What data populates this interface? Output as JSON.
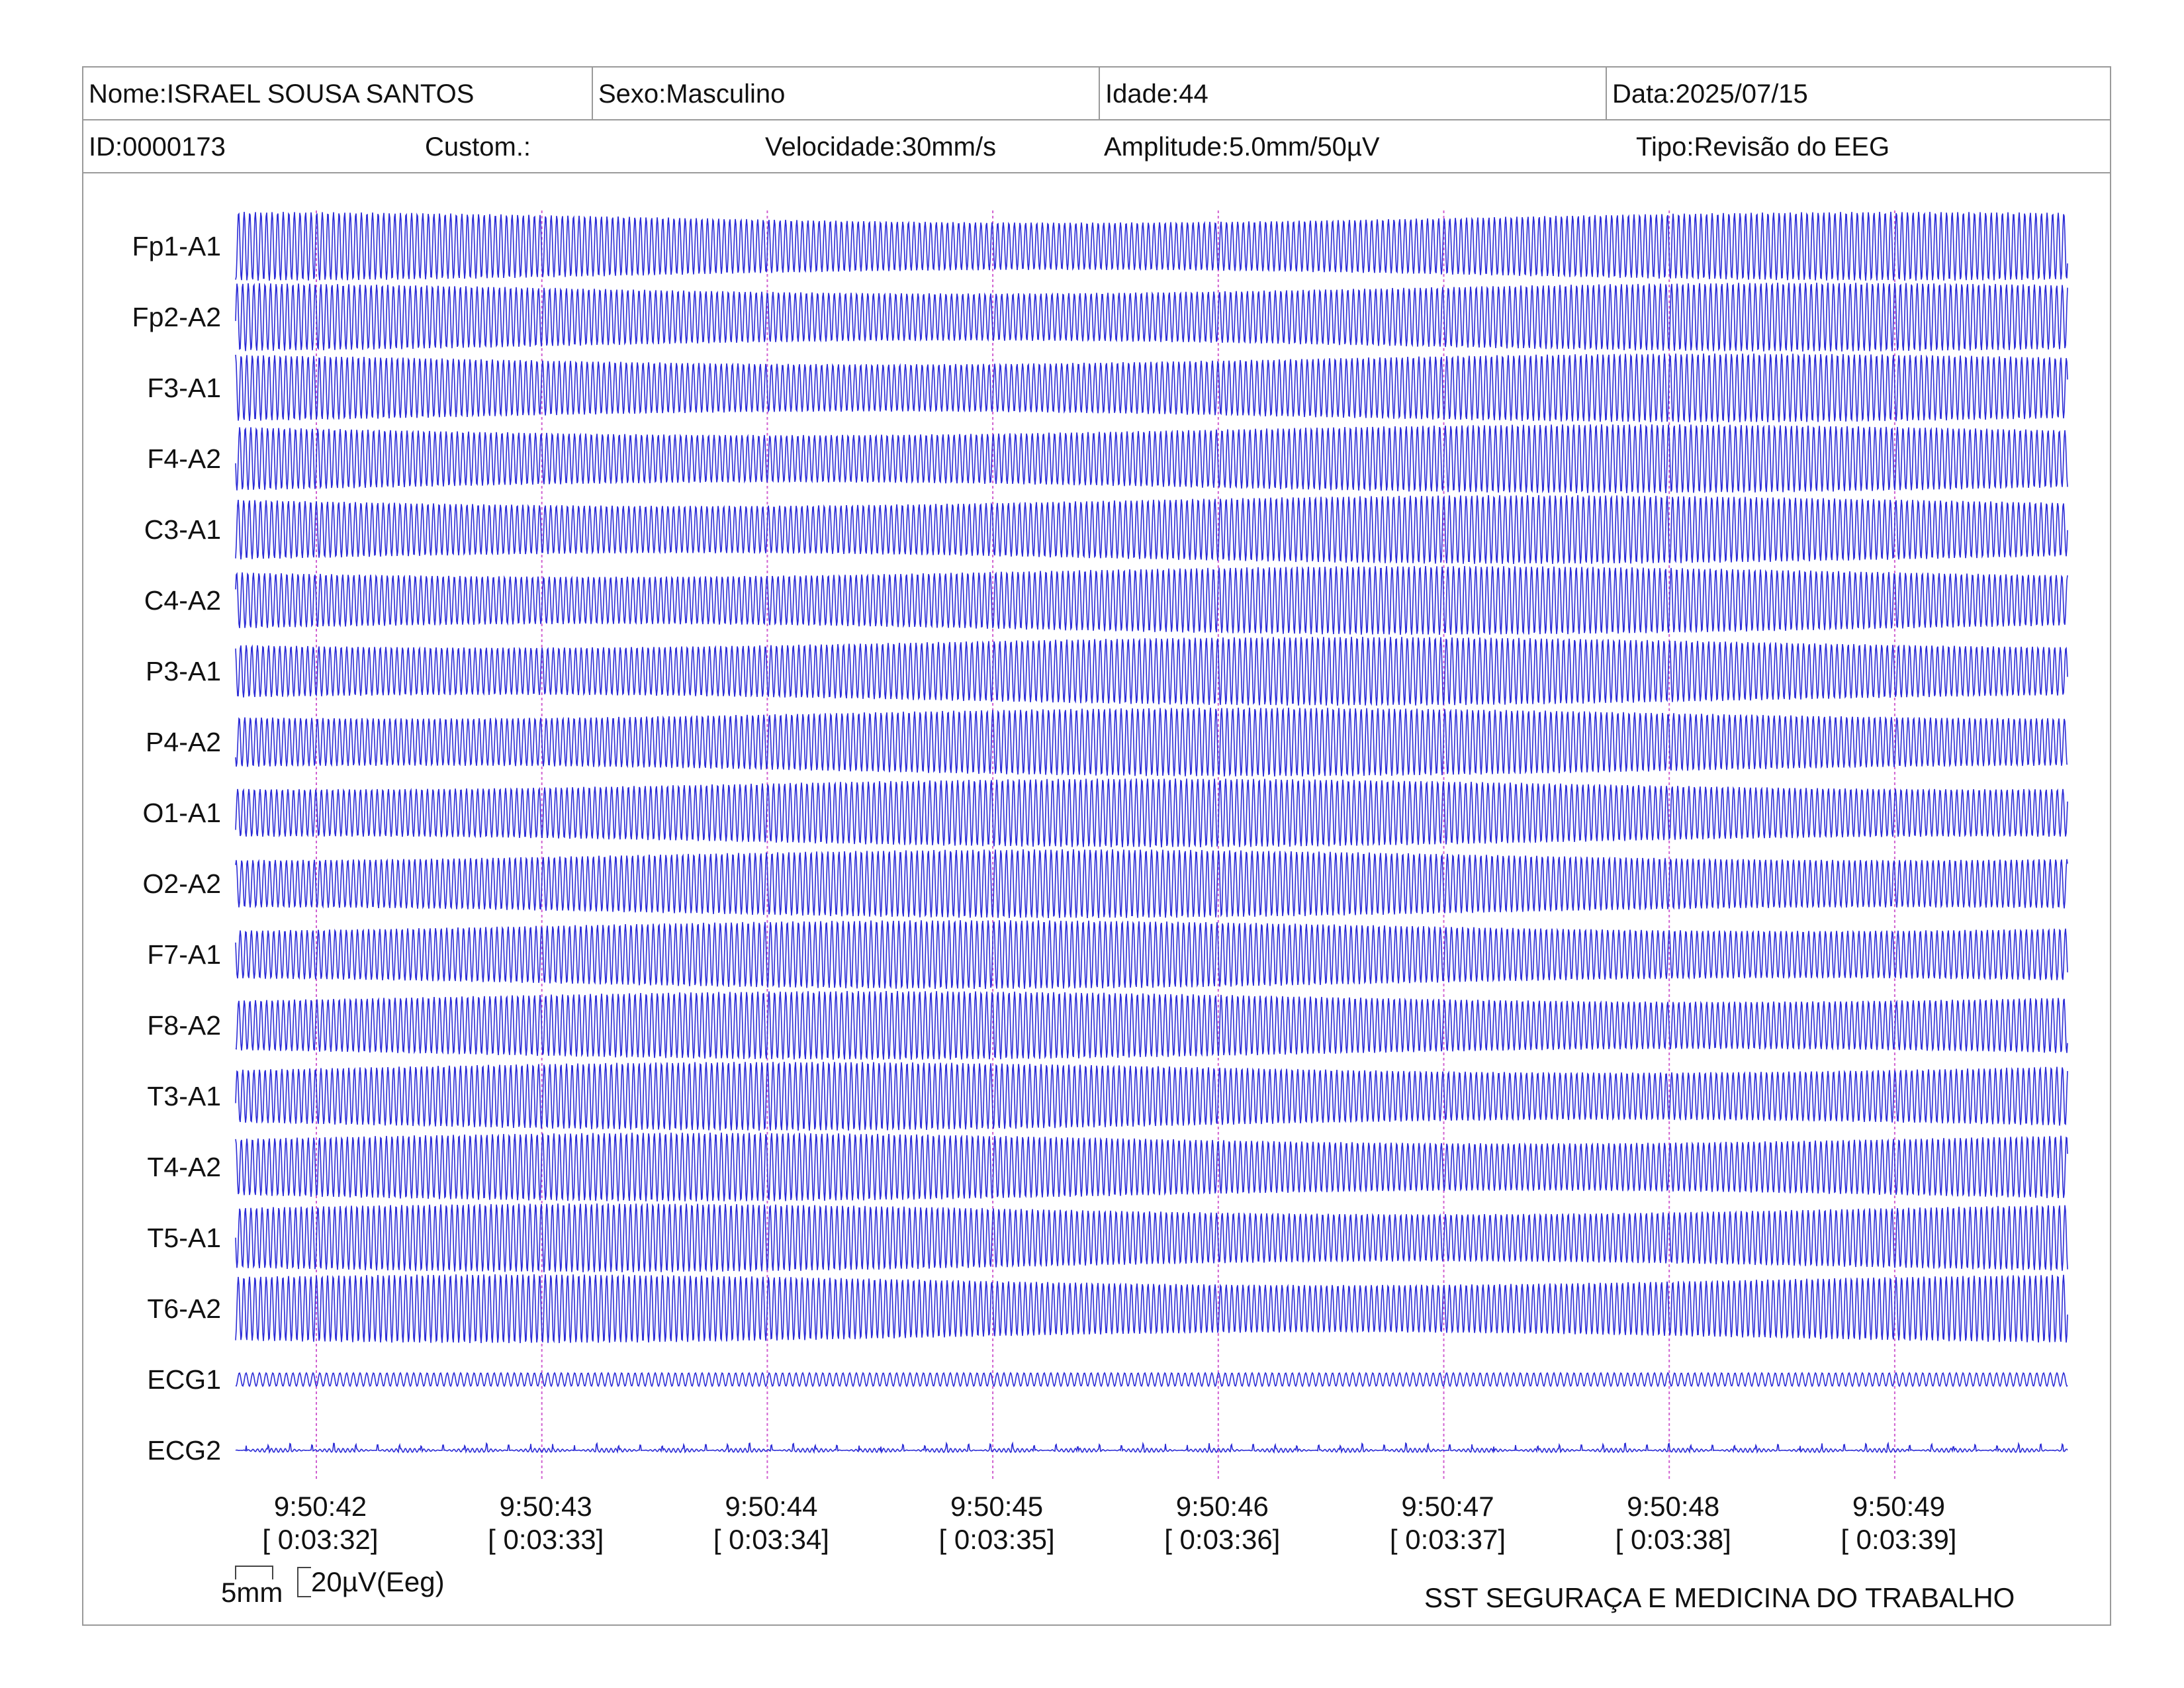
{
  "header": {
    "name": "Nome:ISRAEL SOUSA SANTOS",
    "sex": "Sexo:Masculino",
    "age": "Idade:44",
    "date": "Data:2025/07/15",
    "id": "ID:0000173",
    "custom": "Custom.:",
    "speed": "Velocidade:30mm/s",
    "amplitude": "Amplitude:5.0mm/50µV",
    "type": "Tipo:Revisão do EEG"
  },
  "channels": [
    "Fp1-A1",
    "Fp2-A2",
    "F3-A1",
    "F4-A2",
    "C3-A1",
    "C4-A2",
    "P3-A1",
    "P4-A2",
    "O1-A1",
    "O2-A2",
    "F7-A1",
    "F8-A2",
    "T3-A1",
    "T4-A2",
    "T5-A1",
    "T6-A2",
    "ECG1",
    "ECG2"
  ],
  "time_marks": [
    {
      "clock": "9:50:42",
      "elapsed": "[ 0:03:32]"
    },
    {
      "clock": "9:50:43",
      "elapsed": "[ 0:03:33]"
    },
    {
      "clock": "9:50:44",
      "elapsed": "[ 0:03:34]"
    },
    {
      "clock": "9:50:45",
      "elapsed": "[ 0:03:35]"
    },
    {
      "clock": "9:50:46",
      "elapsed": "[ 0:03:36]"
    },
    {
      "clock": "9:50:47",
      "elapsed": "[ 0:03:37]"
    },
    {
      "clock": "9:50:48",
      "elapsed": "[ 0:03:38]"
    },
    {
      "clock": "9:50:49",
      "elapsed": "[ 0:03:39]"
    }
  ],
  "scale": {
    "time_label": "5mm",
    "amp_label": "20µV(Eeg)"
  },
  "footer": "SST SEGURAÇA E MEDICINA DO TRABALHO",
  "colors": {
    "trace": "#2b2bd6",
    "time_marker": "#d060d0",
    "border": "#9a9a9a"
  }
}
